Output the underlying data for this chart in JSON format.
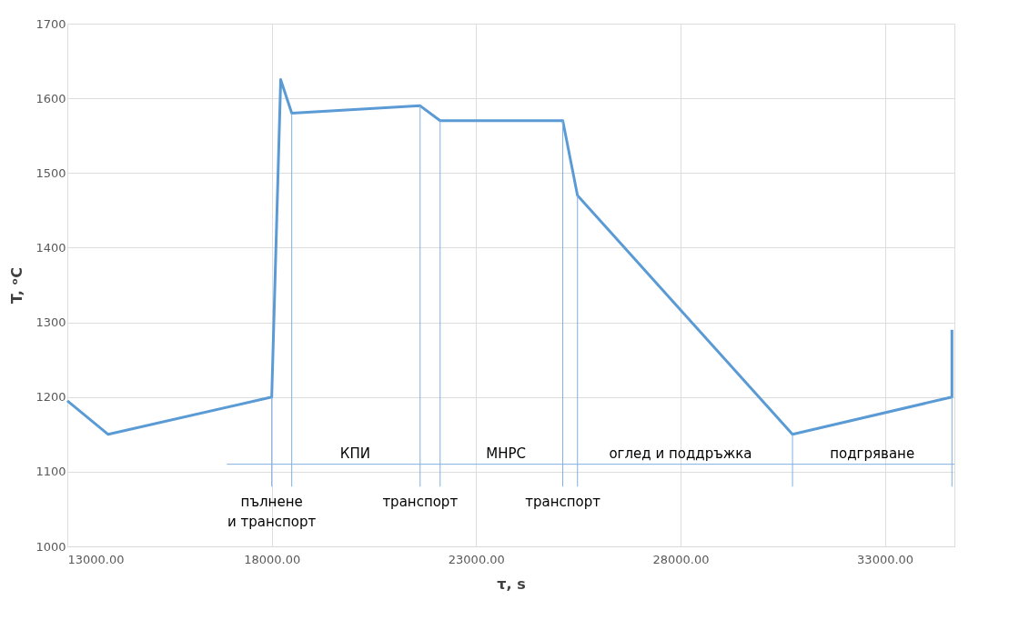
{
  "chart_data": {
    "type": "line",
    "xlabel": "τ, s",
    "ylabel": "T, ᵒC",
    "xlim": [
      13000,
      34700
    ],
    "xticks": [
      {
        "value": 13000,
        "label": "13000.00"
      },
      {
        "value": 18000,
        "label": "18000.00"
      },
      {
        "value": 23000,
        "label": "23000.00"
      },
      {
        "value": 28000,
        "label": "28000.00"
      },
      {
        "value": 33000,
        "label": "33000.00"
      }
    ],
    "ylim": [
      1000,
      1700
    ],
    "yticks": [
      1000,
      1100,
      1200,
      1300,
      1400,
      1500,
      1600,
      1700
    ],
    "grid": true,
    "marker": "none",
    "line_style": "solid",
    "series": [
      {
        "color": "#5b9bd5",
        "x": [
          13000,
          14000,
          18000,
          18220,
          18490,
          21630,
          22120,
          25120,
          25480,
          30740,
          34640,
          34640
        ],
        "values": [
          1195,
          1150,
          1200,
          1625,
          1580,
          1590,
          1570,
          1570,
          1470,
          1150,
          1200,
          1290
        ]
      },
      {
        "color": "#7fb0e0",
        "x": [
          18000,
          18000,
          null,
          18490,
          18490,
          null,
          21630,
          21630,
          null,
          22120,
          22120,
          null,
          25120,
          25120,
          null,
          25480,
          25480,
          null,
          30740,
          30740,
          null,
          34640,
          34640,
          null,
          16900,
          34700
        ],
        "values": [
          1200,
          1080,
          null,
          1580,
          1080,
          null,
          1590,
          1080,
          null,
          1570,
          1080,
          null,
          1570,
          1080,
          null,
          1470,
          1080,
          null,
          1150,
          1080,
          null,
          1200,
          1080,
          null,
          1110,
          1110
        ]
      }
    ],
    "annotations": [
      {
        "text": "КПИ",
        "x": 20040,
        "y": 1110
      },
      {
        "text": "МНРС",
        "x": 23730,
        "y": 1110
      },
      {
        "text": "оглед и поддръжка",
        "x": 28000,
        "y": 1110
      },
      {
        "text": "подгряване",
        "x": 32690,
        "y": 1110
      },
      {
        "text": "пълнене\nи транспорт",
        "x": 18000,
        "y": 1080
      },
      {
        "text": "транспорт",
        "x": 21630,
        "y": 1080
      },
      {
        "text": "транспорт",
        "x": 25120,
        "y": 1080
      }
    ]
  }
}
